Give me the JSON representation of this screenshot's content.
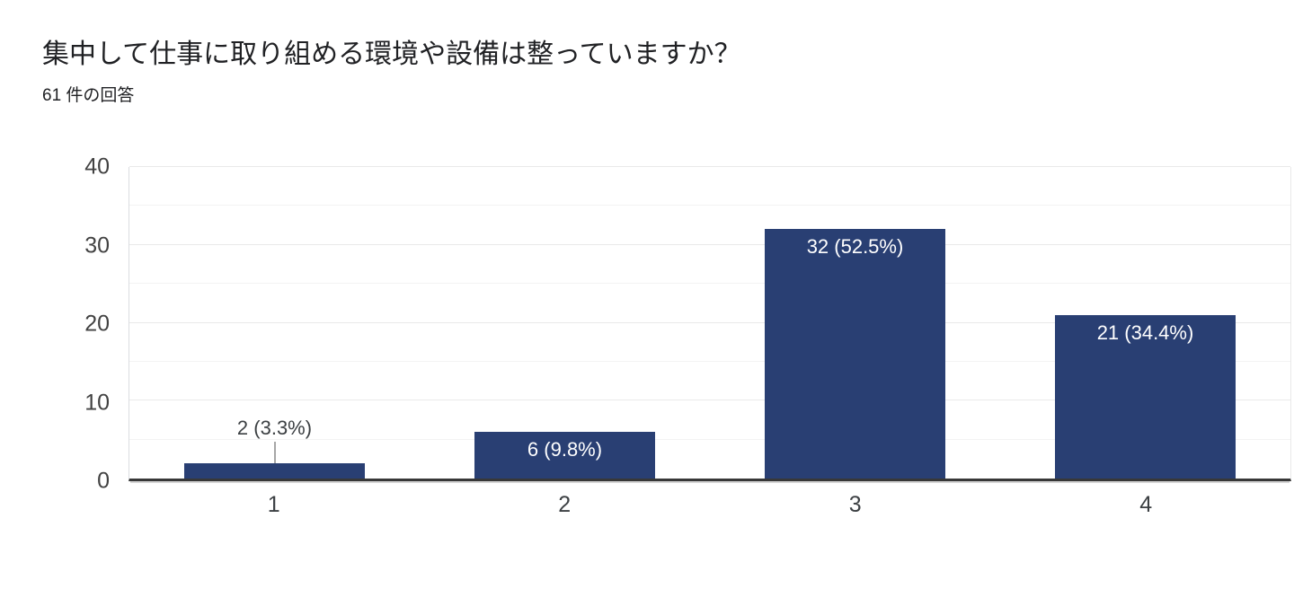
{
  "header": {
    "title": "集中して仕事に取り組める環境や設備は整っていますか？",
    "subtitle": "61 件の回答"
  },
  "chart_data": {
    "type": "bar",
    "title": "集中して仕事に取り組める環境や設備は整っていますか？",
    "subtitle": "61 件の回答",
    "total_responses": 61,
    "categories": [
      "1",
      "2",
      "3",
      "4"
    ],
    "values": [
      2,
      6,
      32,
      21
    ],
    "percentages": [
      3.3,
      9.8,
      52.5,
      34.4
    ],
    "value_labels": [
      "2 (3.3%)",
      "6 (9.8%)",
      "32 (52.5%)",
      "21 (34.4%)"
    ],
    "xlabel": "",
    "ylabel": "",
    "ylim": [
      0,
      40
    ],
    "y_ticks": [
      0,
      10,
      20,
      30,
      40
    ],
    "y_minor_step": 5,
    "grid": true,
    "legend": "none",
    "colors": {
      "bar": "#293F73",
      "bar_label_inside": "#ffffff",
      "bar_label_outside": "#3c4043",
      "axis_tick_label": "#424242",
      "gridline_minor": "#f3f3f3",
      "gridline_major": "#e9e9e9",
      "baseline": "#383838",
      "connector": "#a6a6a6",
      "background": "#ffffff"
    }
  }
}
